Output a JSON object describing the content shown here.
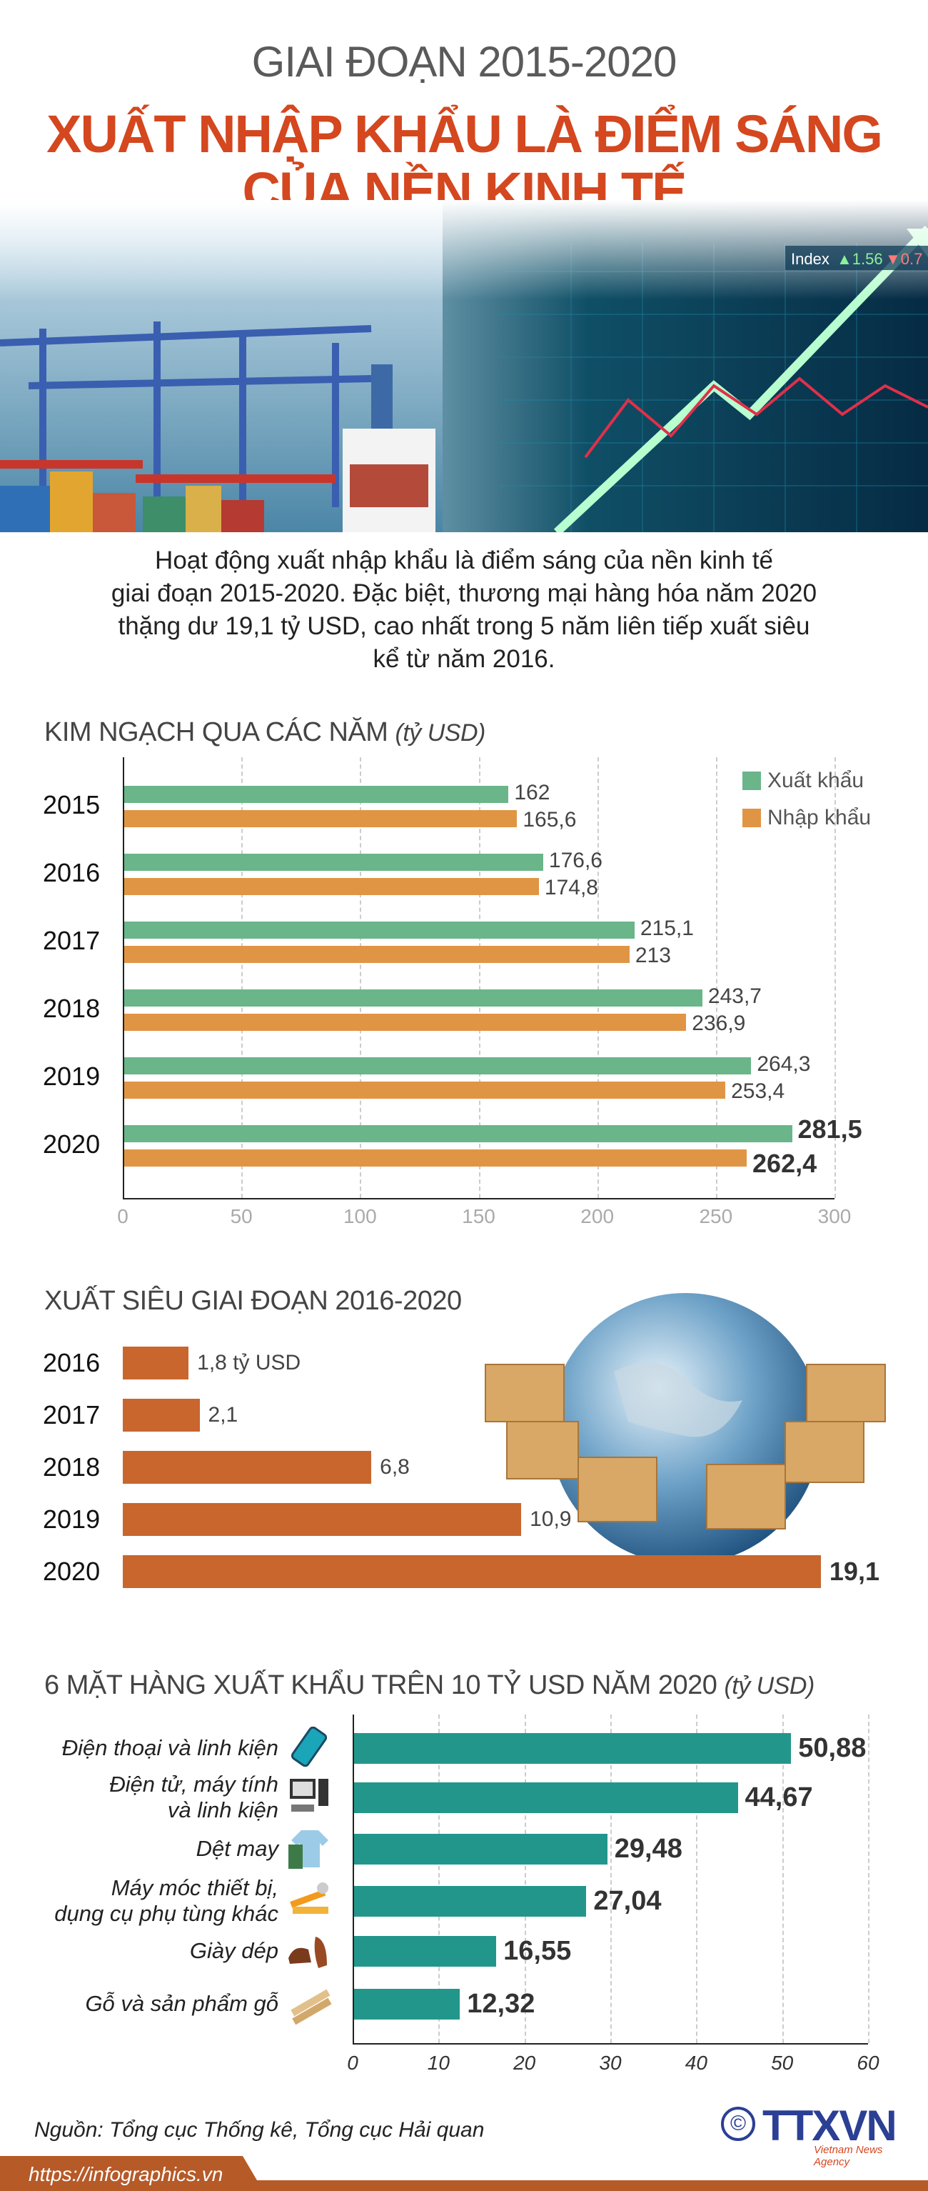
{
  "header": {
    "subtitle": "GIAI ĐOẠN 2015-2020",
    "title_lines": [
      "XUẤT NHẬP KHẨU LÀ ĐIỂM SÁNG",
      "CỦA NỀN KINH TẾ"
    ]
  },
  "hero": {
    "index_label": "Index",
    "index_up": "▲1.56",
    "index_down": "▼0.7"
  },
  "intro": {
    "lines": [
      "Hoạt động xuất nhập khẩu là điểm sáng của nền kinh tế",
      "giai đoạn 2015-2020. Đặc biệt, thương mại hàng hóa năm 2020",
      "thặng dư 19,1 tỷ USD, cao nhất trong 5 năm liên tiếp xuất siêu",
      "kể từ năm 2016."
    ]
  },
  "colors": {
    "title": "#d4471f",
    "export": "#6ab58a",
    "import": "#e09545",
    "surplus": "#c8662e",
    "products": "#23968c",
    "footer": "#b65a28",
    "logo": "#2b3f95"
  },
  "chart_data": [
    {
      "type": "bar",
      "orientation": "horizontal",
      "title": "KIM NGẠCH QUA CÁC NĂM",
      "unit": "(tỷ USD)",
      "categories": [
        "2015",
        "2016",
        "2017",
        "2018",
        "2019",
        "2020"
      ],
      "series": [
        {
          "name": "Xuất khẩu",
          "values": [
            162,
            176.6,
            215.1,
            243.7,
            264.3,
            281.5
          ],
          "labels": [
            "162",
            "176,6",
            "215,1",
            "243,7",
            "264,3",
            "281,5"
          ]
        },
        {
          "name": "Nhập khẩu",
          "values": [
            165.6,
            174.8,
            213,
            236.9,
            253.4,
            262.4
          ],
          "labels": [
            "165,6",
            "174,8",
            "213",
            "236,9",
            "253,4",
            "262,4"
          ]
        }
      ],
      "xlim": [
        0,
        300
      ],
      "xticks": [
        "0",
        "50",
        "100",
        "150",
        "200",
        "250",
        "300"
      ],
      "grid": true,
      "legend": "top-right"
    },
    {
      "type": "bar",
      "orientation": "horizontal",
      "title": "XUẤT SIÊU GIAI ĐOẠN 2016-2020",
      "categories": [
        "2016",
        "2017",
        "2018",
        "2019",
        "2020"
      ],
      "values": [
        1.8,
        2.1,
        6.8,
        10.9,
        19.1
      ],
      "labels": [
        "1,8 tỷ USD",
        "2,1",
        "6,8",
        "10,9",
        "19,1"
      ]
    },
    {
      "type": "bar",
      "orientation": "horizontal",
      "title": "6 MẶT HÀNG XUẤT KHẨU TRÊN 10 TỶ USD NĂM 2020",
      "unit": "(tỷ USD)",
      "categories": [
        {
          "lines": [
            "Điện thoại và linh kiện"
          ],
          "icon": "phone-icon"
        },
        {
          "lines": [
            "Điện tử, máy tính",
            "và linh kiện"
          ],
          "icon": "computer-icon"
        },
        {
          "lines": [
            "Dệt may"
          ],
          "icon": "clothes-icon"
        },
        {
          "lines": [
            "Máy móc thiết bị,",
            "dụng cụ phụ tùng khác"
          ],
          "icon": "tools-icon"
        },
        {
          "lines": [
            "Giày dép"
          ],
          "icon": "shoes-icon"
        },
        {
          "lines": [
            "Gỗ và sản phẩm gỗ"
          ],
          "icon": "wood-icon"
        }
      ],
      "values": [
        50.88,
        44.67,
        29.48,
        27.04,
        16.55,
        12.32
      ],
      "labels": [
        "50,88",
        "44,67",
        "29,48",
        "27,04",
        "16,55",
        "12,32"
      ],
      "xlim": [
        0,
        60
      ],
      "xticks": [
        "0",
        "10",
        "20",
        "30",
        "40",
        "50",
        "60"
      ],
      "grid": true
    }
  ],
  "footer": {
    "source": "Nguồn: Tổng cục Thống kê, Tổng cục Hải quan",
    "url": "https://infographics.vn",
    "logo_text": "TTXVN",
    "logo_sub": "Vietnam News Agency",
    "copyright": "©"
  }
}
